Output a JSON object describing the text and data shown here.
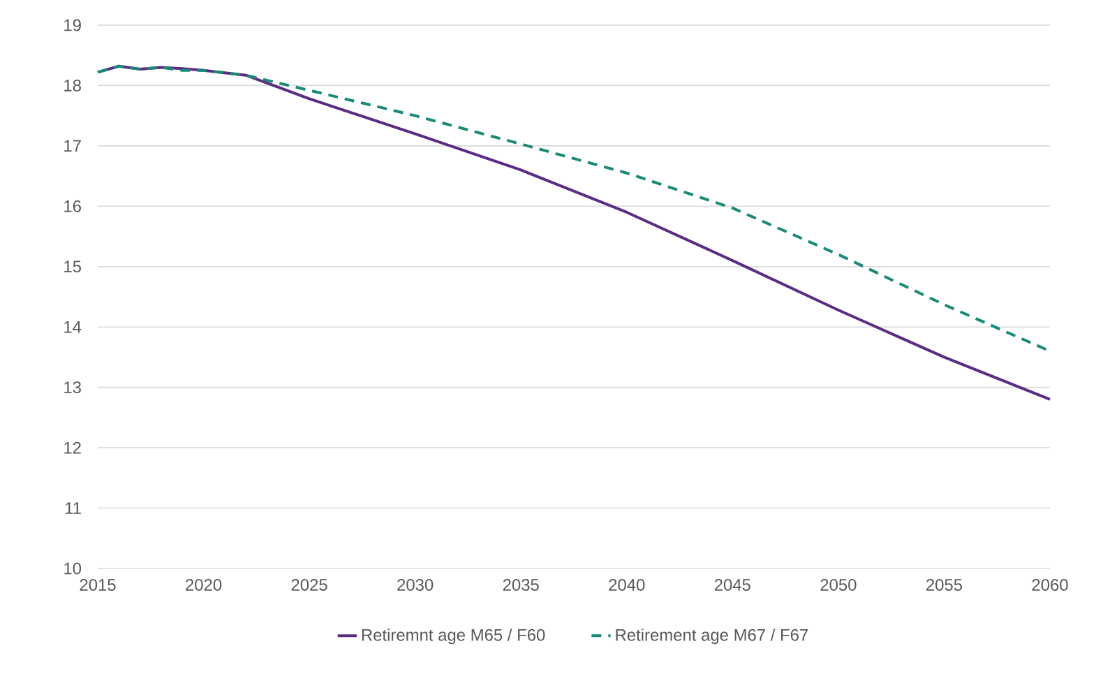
{
  "chart_data": {
    "type": "line",
    "x": [
      2015,
      2016,
      2017,
      2018,
      2019,
      2020,
      2022,
      2025,
      2030,
      2035,
      2040,
      2045,
      2050,
      2055,
      2060
    ],
    "series": [
      {
        "name": "Retiremnt age M65 / F60",
        "color": "#5b2c83",
        "line_style": "solid",
        "values": [
          18.22,
          18.32,
          18.27,
          18.3,
          18.28,
          18.25,
          18.17,
          17.78,
          17.2,
          16.6,
          15.9,
          15.1,
          14.28,
          13.5,
          12.8
        ]
      },
      {
        "name": "Retirement age M67 / F67",
        "color": "#1a8a76",
        "line_style": "dashed",
        "values": [
          18.22,
          18.32,
          18.27,
          18.3,
          18.25,
          18.25,
          18.17,
          17.92,
          17.5,
          17.03,
          16.55,
          15.97,
          15.2,
          14.37,
          13.6
        ]
      }
    ],
    "xlim": [
      2015,
      2060
    ],
    "xticks": [
      2015,
      2020,
      2025,
      2030,
      2035,
      2040,
      2045,
      2050,
      2055,
      2060
    ],
    "ylim": [
      10,
      19
    ],
    "yticks": [
      10,
      11,
      12,
      13,
      14,
      15,
      16,
      17,
      18,
      19
    ],
    "grid": "y",
    "legend": "bottom",
    "marker": "none"
  }
}
